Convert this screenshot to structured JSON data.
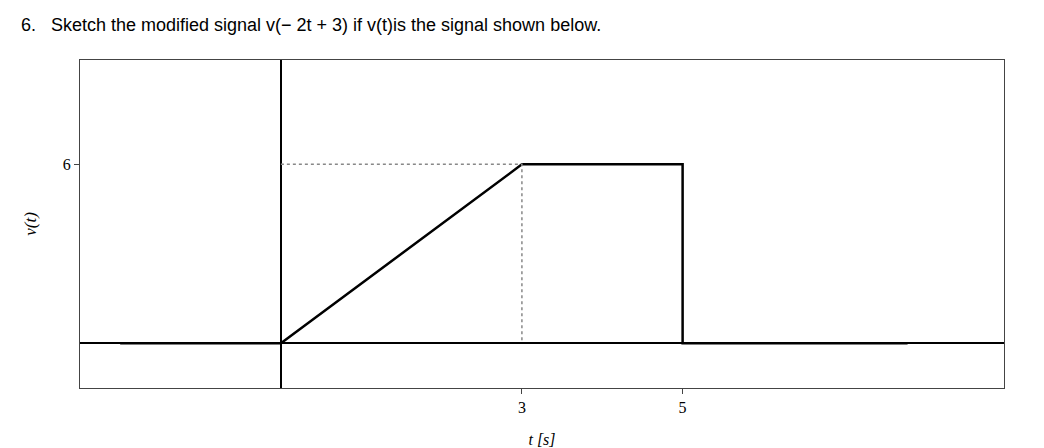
{
  "chart_data": {
    "type": "line",
    "title": "6.   Sketch the modified signal v(− 2t + 3) if v(t)is the signal shown below.",
    "x_label": "t [s]",
    "y_label": "v(t)",
    "series": [
      {
        "color": "#000000",
        "line_style": "solid",
        "x": [
          -2.0,
          0,
          3,
          5,
          5,
          7.8
        ],
        "values": [
          0,
          0,
          6,
          6,
          0,
          0
        ]
      },
      {
        "color": "#888888",
        "line_style": "dotted",
        "x": [
          0,
          3,
          3
        ],
        "values": [
          6,
          6,
          0
        ]
      }
    ],
    "xlim": [
      -2.5,
      9.0
    ],
    "xticks": [
      3,
      5
    ],
    "ylim": [
      -1.5,
      9.5
    ],
    "yticks": [
      6
    ],
    "grid": false
  }
}
